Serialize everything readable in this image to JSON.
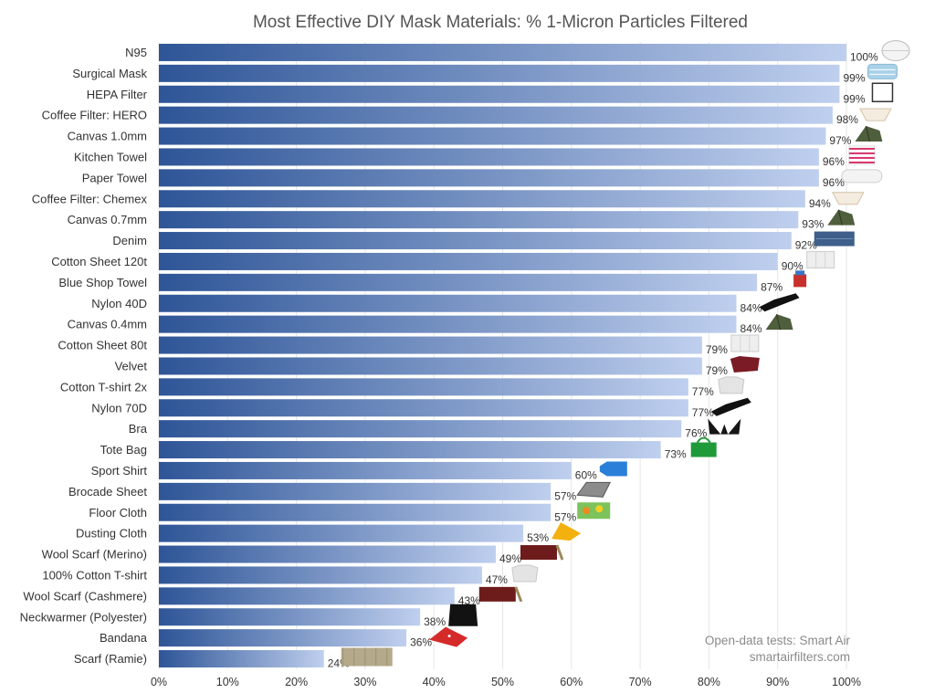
{
  "chart_data": {
    "type": "bar",
    "orientation": "horizontal",
    "title": "Most Effective DIY Mask Materials: % 1-Micron Particles Filtered",
    "categories": [
      "N95",
      "Surgical Mask",
      "HEPA Filter",
      "Coffee Filter: HERO",
      "Canvas 1.0mm",
      "Kitchen Towel",
      "Paper Towel",
      "Coffee Filter: Chemex",
      "Canvas 0.7mm",
      "Denim",
      "Cotton Sheet 120t",
      "Blue Shop Towel",
      "Nylon 40D",
      "Canvas 0.4mm",
      "Cotton Sheet 80t",
      "Velvet",
      "Cotton T-shirt 2x",
      "Nylon 70D",
      "Bra",
      "Tote Bag",
      "Sport Shirt",
      "Brocade Sheet",
      "Floor Cloth",
      "Dusting Cloth",
      "Wool Scarf (Merino)",
      "100% Cotton T-shirt",
      "Wool Scarf (Cashmere)",
      "Neckwarmer (Polyester)",
      "Bandana",
      "Scarf (Ramie)"
    ],
    "values": [
      100,
      99,
      99,
      98,
      97,
      96,
      96,
      94,
      93,
      92,
      90,
      87,
      84,
      84,
      79,
      79,
      77,
      77,
      76,
      73,
      60,
      57,
      57,
      53,
      49,
      47,
      43,
      38,
      36,
      24
    ],
    "value_labels": [
      "100%",
      "99%",
      "99%",
      "98%",
      "97%",
      "96%",
      "96%",
      "94%",
      "93%",
      "92%",
      "90%",
      "87%",
      "84%",
      "84%",
      "79%",
      "79%",
      "77%",
      "77%",
      "76%",
      "73%",
      "60%",
      "57%",
      "57%",
      "53%",
      "49%",
      "47%",
      "43%",
      "38%",
      "36%",
      "24%"
    ],
    "material_icons": [
      "n95-mask-icon",
      "surgical-mask-icon",
      "hepa-filter-icon",
      "coffee-filter-icon",
      "canvas-tent-icon",
      "kitchen-towel-icon",
      "paper-towel-icon",
      "coffee-filter-icon",
      "canvas-tent-icon",
      "denim-icon",
      "cotton-sheet-icon",
      "blue-shop-towel-icon",
      "nylon-glove-icon",
      "canvas-tent-icon",
      "cotton-sheet-icon",
      "velvet-icon",
      "cotton-tshirt-icon",
      "nylon-glove-icon",
      "bra-icon",
      "tote-bag-icon",
      "sport-shirt-icon",
      "brocade-sheet-icon",
      "floor-cloth-icon",
      "dusting-cloth-icon",
      "wool-scarf-icon",
      "cotton-tshirt-icon",
      "wool-scarf-icon",
      "neckwarmer-icon",
      "bandana-icon",
      "ramie-scarf-icon"
    ],
    "x_ticks": [
      0,
      10,
      20,
      30,
      40,
      50,
      60,
      70,
      80,
      90,
      100
    ],
    "x_tick_labels": [
      "0%",
      "10%",
      "20%",
      "30%",
      "40%",
      "50%",
      "60%",
      "70%",
      "80%",
      "90%",
      "100%"
    ],
    "xlim": [
      0,
      100
    ],
    "grid": true,
    "colors": {
      "bar_start": "#2e5597",
      "bar_end": "#bfcfee",
      "text": "#333333",
      "title": "#555555",
      "grid": "#e6e6e6",
      "credit": "#8a8a8a"
    },
    "annotations": [
      "Open-data tests: Smart Air",
      "smartairfilters.com"
    ]
  }
}
